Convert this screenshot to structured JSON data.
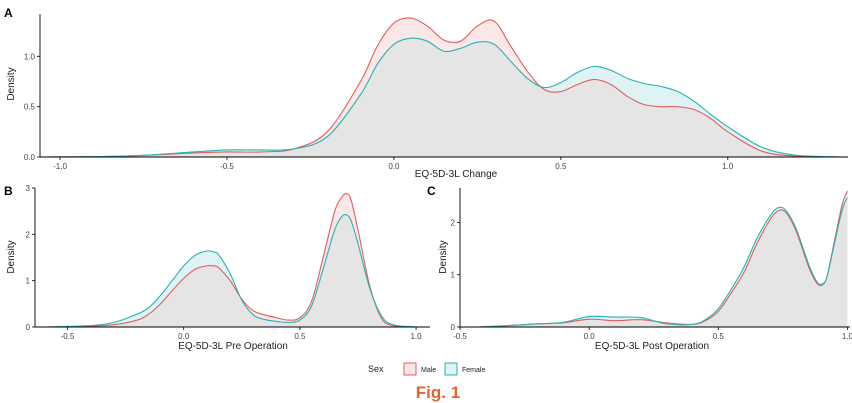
{
  "colors": {
    "male": "#e05f5f",
    "female": "#27b1b7",
    "overlap": "#e5e5e5"
  },
  "legend": {
    "title": "Sex",
    "items": [
      {
        "label": "Male"
      },
      {
        "label": "Female"
      }
    ]
  },
  "caption": "Fig. 1",
  "chart_data": [
    {
      "type": "area",
      "panel": "A",
      "xlabel": "EQ-5D-3L Change",
      "ylabel": "Density",
      "xlim": [
        -1.06,
        1.36
      ],
      "ylim": [
        0,
        1.42
      ],
      "xticks": [
        -1.0,
        -0.5,
        0.0,
        0.5,
        1.0
      ],
      "xtick_labels": [
        "-1.0",
        "-0.5",
        "0.0",
        "0.5",
        "1.0"
      ],
      "yticks": [
        0.0,
        0.5,
        1.0
      ],
      "ytick_labels": [
        "0.0",
        "0.5",
        "1.0"
      ],
      "grid": false,
      "series": [
        {
          "name": "Male",
          "x": [
            -1.05,
            -0.8,
            -0.6,
            -0.5,
            -0.4,
            -0.3,
            -0.2,
            -0.1,
            -0.05,
            0.0,
            0.05,
            0.1,
            0.15,
            0.2,
            0.25,
            0.3,
            0.35,
            0.4,
            0.45,
            0.5,
            0.55,
            0.6,
            0.65,
            0.7,
            0.75,
            0.8,
            0.85,
            0.9,
            0.95,
            1.0,
            1.1,
            1.2,
            1.35
          ],
          "y": [
            0.0,
            0.01,
            0.04,
            0.05,
            0.05,
            0.08,
            0.25,
            0.75,
            1.1,
            1.33,
            1.38,
            1.3,
            1.16,
            1.15,
            1.3,
            1.35,
            1.1,
            0.85,
            0.67,
            0.65,
            0.72,
            0.77,
            0.72,
            0.6,
            0.52,
            0.5,
            0.5,
            0.47,
            0.38,
            0.25,
            0.06,
            0.01,
            0.0
          ]
        },
        {
          "name": "Female",
          "x": [
            -1.05,
            -0.8,
            -0.6,
            -0.5,
            -0.4,
            -0.3,
            -0.2,
            -0.1,
            -0.05,
            0.0,
            0.05,
            0.1,
            0.15,
            0.2,
            0.25,
            0.3,
            0.35,
            0.4,
            0.45,
            0.5,
            0.55,
            0.6,
            0.65,
            0.7,
            0.75,
            0.8,
            0.85,
            0.9,
            0.95,
            1.0,
            1.1,
            1.2,
            1.35
          ],
          "y": [
            0.0,
            0.01,
            0.05,
            0.07,
            0.07,
            0.08,
            0.2,
            0.62,
            0.92,
            1.12,
            1.18,
            1.15,
            1.05,
            1.08,
            1.14,
            1.12,
            0.95,
            0.78,
            0.69,
            0.74,
            0.84,
            0.9,
            0.86,
            0.78,
            0.73,
            0.7,
            0.65,
            0.55,
            0.42,
            0.3,
            0.1,
            0.02,
            0.0
          ]
        }
      ]
    },
    {
      "type": "area",
      "panel": "B",
      "xlabel": "EQ-5D-3L Pre Operation",
      "ylabel": "Density",
      "xlim": [
        -0.64,
        1.06
      ],
      "ylim": [
        0,
        3.0
      ],
      "xticks": [
        -0.5,
        0.0,
        0.5,
        1.0
      ],
      "xtick_labels": [
        "-0.5",
        "0.0",
        "0.5",
        "1.0"
      ],
      "yticks": [
        0,
        1,
        2,
        3
      ],
      "ytick_labels": [
        "0",
        "1",
        "2",
        "3"
      ],
      "grid": false,
      "series": [
        {
          "name": "Male",
          "x": [
            -0.59,
            -0.4,
            -0.3,
            -0.2,
            -0.15,
            -0.1,
            -0.05,
            0.0,
            0.05,
            0.1,
            0.13,
            0.15,
            0.2,
            0.25,
            0.3,
            0.35,
            0.4,
            0.45,
            0.5,
            0.55,
            0.6,
            0.65,
            0.68,
            0.7,
            0.72,
            0.75,
            0.8,
            0.85,
            0.9,
            1.0
          ],
          "y": [
            0.0,
            0.02,
            0.05,
            0.15,
            0.28,
            0.5,
            0.78,
            1.05,
            1.25,
            1.32,
            1.32,
            1.28,
            1.0,
            0.6,
            0.35,
            0.26,
            0.2,
            0.15,
            0.2,
            0.55,
            1.5,
            2.5,
            2.8,
            2.88,
            2.75,
            2.1,
            0.9,
            0.2,
            0.03,
            0.0
          ]
        },
        {
          "name": "Female",
          "x": [
            -0.59,
            -0.4,
            -0.3,
            -0.2,
            -0.15,
            -0.1,
            -0.05,
            0.0,
            0.05,
            0.1,
            0.13,
            0.15,
            0.2,
            0.25,
            0.3,
            0.35,
            0.4,
            0.45,
            0.5,
            0.55,
            0.6,
            0.65,
            0.68,
            0.7,
            0.72,
            0.75,
            0.8,
            0.85,
            0.9,
            1.0
          ],
          "y": [
            0.0,
            0.03,
            0.1,
            0.28,
            0.42,
            0.68,
            1.0,
            1.32,
            1.55,
            1.64,
            1.62,
            1.56,
            1.15,
            0.58,
            0.26,
            0.16,
            0.12,
            0.1,
            0.15,
            0.45,
            1.25,
            2.1,
            2.38,
            2.42,
            2.3,
            1.8,
            0.85,
            0.25,
            0.05,
            0.0
          ]
        }
      ]
    },
    {
      "type": "area",
      "panel": "C",
      "xlabel": "EQ-5D-3L Post Operation",
      "ylabel": "Density",
      "xlim": [
        -0.5,
        1.01
      ],
      "ylim": [
        0,
        2.66
      ],
      "xticks": [
        -0.5,
        0.0,
        0.5,
        1.0
      ],
      "xtick_labels": [
        "-0.5",
        "0.0",
        "0.5",
        "1.0"
      ],
      "yticks": [
        0,
        1,
        2
      ],
      "ytick_labels": [
        "0",
        "1",
        "2"
      ],
      "grid": false,
      "series": [
        {
          "name": "Male",
          "x": [
            -0.43,
            -0.3,
            -0.2,
            -0.1,
            0.0,
            0.1,
            0.2,
            0.3,
            0.4,
            0.45,
            0.5,
            0.55,
            0.6,
            0.65,
            0.7,
            0.73,
            0.76,
            0.8,
            0.85,
            0.88,
            0.9,
            0.92,
            0.95,
            0.98,
            1.0
          ],
          "y": [
            0.0,
            0.03,
            0.06,
            0.08,
            0.15,
            0.12,
            0.14,
            0.08,
            0.05,
            0.12,
            0.3,
            0.65,
            1.05,
            1.6,
            2.05,
            2.22,
            2.2,
            1.85,
            1.15,
            0.85,
            0.8,
            0.95,
            1.65,
            2.35,
            2.6
          ]
        },
        {
          "name": "Female",
          "x": [
            -0.43,
            -0.3,
            -0.2,
            -0.1,
            0.0,
            0.1,
            0.2,
            0.3,
            0.4,
            0.45,
            0.5,
            0.55,
            0.6,
            0.65,
            0.7,
            0.73,
            0.76,
            0.8,
            0.85,
            0.88,
            0.9,
            0.92,
            0.95,
            0.98,
            1.0
          ],
          "y": [
            0.0,
            0.03,
            0.06,
            0.09,
            0.2,
            0.19,
            0.18,
            0.06,
            0.05,
            0.14,
            0.35,
            0.72,
            1.15,
            1.7,
            2.12,
            2.28,
            2.24,
            1.9,
            1.2,
            0.88,
            0.82,
            0.95,
            1.6,
            2.25,
            2.48
          ]
        }
      ]
    }
  ]
}
